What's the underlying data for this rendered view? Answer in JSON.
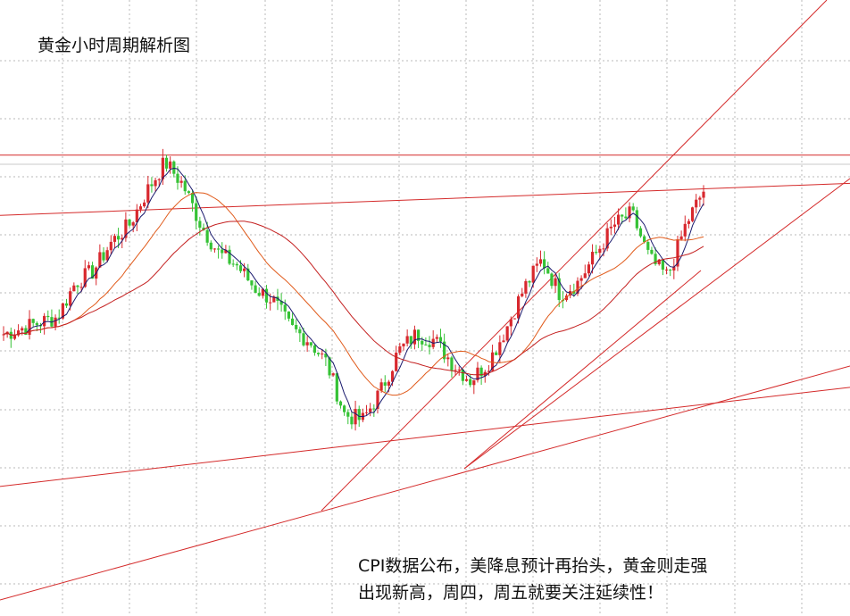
{
  "chart_data": {
    "type": "candlestick",
    "title": "黄金小时周期解析图",
    "annotation": [
      "CPI数据公布，美降息预计再抬头，黄金则走强",
      "出现新高，周四，周五就要关注延续性！"
    ],
    "grid": true,
    "price_scale": [
      2330,
      2400
    ],
    "colors": {
      "up": "#d8282e",
      "down": "#35c235",
      "ma_fast": "#1a1a6e",
      "ma_mid": "#e05a1a",
      "ma_slow": "#c42020",
      "lines": "#d42a2a",
      "grid": "#b8b8b8"
    },
    "horizontal_level": 2393.2,
    "trendlines": [
      {
        "name": "upper-channel",
        "points": [
          [
            27,
            2385.9
          ],
          [
            38,
            2387.2
          ]
        ]
      },
      {
        "name": "rising-support",
        "points": [
          [
            21,
            2343.2
          ],
          [
            38,
            2349.4
          ]
        ]
      }
    ],
    "close_series": [
      2362,
      2363,
      2364,
      2365,
      2371,
      2373,
      2378,
      2381,
      2387,
      2392,
      2388,
      2381,
      2376,
      2374,
      2370,
      2368,
      2363,
      2361,
      2357,
      2348,
      2347,
      2352,
      2359,
      2362,
      2361,
      2357,
      2354,
      2357,
      2363,
      2370,
      2375,
      2369,
      2371,
      2376,
      2381,
      2383,
      2375,
      2372,
      2381,
      2387
    ]
  }
}
